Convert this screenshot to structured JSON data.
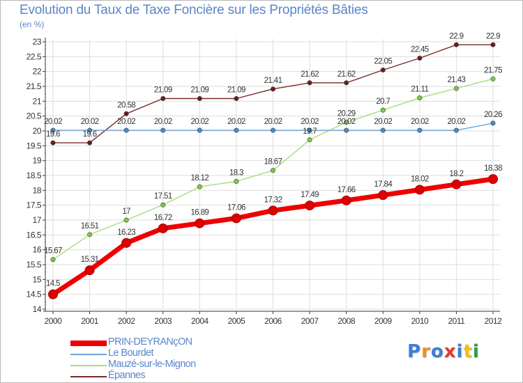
{
  "header": {
    "title": "Evolution du Taux de Taxe Foncière sur les Propriétés Bâties",
    "subtitle": "(en %)"
  },
  "logo": {
    "text": "Proxiti",
    "letter_colors": [
      "#3b7dd8",
      "#f28c1e",
      "#3b7dd8",
      "#e23a2b",
      "#3b7dd8",
      "#f4c20d",
      "#2c9a47"
    ]
  },
  "chart_data": {
    "type": "line",
    "x": [
      2000,
      2001,
      2002,
      2003,
      2004,
      2005,
      2006,
      2007,
      2008,
      2009,
      2010,
      2011,
      2012
    ],
    "ylim": [
      14,
      23
    ],
    "yticks": [
      14,
      14.5,
      15,
      15.5,
      16,
      16.5,
      17,
      17.5,
      18,
      18.5,
      19,
      19.5,
      20,
      20.5,
      21,
      21.5,
      22,
      22.5,
      23
    ],
    "grid": true,
    "legend_position": "bottom-left",
    "series": [
      {
        "name": "PRIN-DEYRANçON",
        "color": "#ee0000",
        "marker_color": "#dd0000",
        "values": [
          14.5,
          15.31,
          16.23,
          16.72,
          16.89,
          17.06,
          17.32,
          17.49,
          17.66,
          17.84,
          18.02,
          18.2,
          18.38
        ],
        "labels": [
          "14.5",
          "15.31",
          "16.23",
          "16.72",
          "16.89",
          "17.06",
          "17.32",
          "17.49",
          "17.66",
          "17.84",
          "18.02",
          "18.2",
          "18.38"
        ]
      },
      {
        "name": "Le Bourdet",
        "color": "#6fa3d8",
        "marker_color": "#3f8ed0",
        "values": [
          20.02,
          20.02,
          20.02,
          20.02,
          20.02,
          20.02,
          20.02,
          20.02,
          20.02,
          20.02,
          20.02,
          20.02,
          20.26
        ],
        "labels": [
          "20.02",
          "20.02",
          "20.02",
          "20.02",
          "20.02",
          "20.02",
          "20.02",
          "20.02",
          "20.02",
          "20.02",
          "20.02",
          "20.02",
          "20.26"
        ]
      },
      {
        "name": "Mauzé-sur-le-Mignon",
        "color": "#a8dc7c",
        "marker_color": "#7ccd3c",
        "values": [
          15.67,
          16.51,
          17,
          17.51,
          18.12,
          18.3,
          18.67,
          19.7,
          20.29,
          20.7,
          21.11,
          21.43,
          21.75
        ],
        "labels": [
          "15.67",
          "16.51",
          "17",
          "17.51",
          "18.12",
          "18.3",
          "18.67",
          "19.7",
          "20.29",
          "20.7",
          "21.11",
          "21.43",
          "21.75"
        ]
      },
      {
        "name": "Épannes",
        "color": "#7a2a2a",
        "marker_color": "#6a1c1c",
        "values": [
          19.6,
          19.6,
          20.58,
          21.09,
          21.09,
          21.09,
          21.41,
          21.62,
          21.62,
          22.05,
          22.45,
          22.9,
          22.9
        ],
        "labels": [
          "19.6",
          "19.6",
          "20.58",
          "21.09",
          "21.09",
          "21.09",
          "21.41",
          "21.62",
          "21.62",
          "22.05",
          "22.45",
          "22.9",
          "22.9"
        ]
      }
    ]
  }
}
